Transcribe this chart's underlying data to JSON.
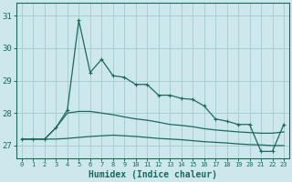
{
  "xlabel": "Humidex (Indice chaleur)",
  "background_color": "#cce8ec",
  "grid_color": "#aacdd4",
  "line_color": "#1a6b5a",
  "x": [
    0,
    1,
    2,
    3,
    4,
    5,
    6,
    7,
    8,
    9,
    10,
    11,
    12,
    13,
    14,
    15,
    16,
    17,
    18,
    19,
    20,
    21,
    22,
    23
  ],
  "y_upper": [
    27.2,
    27.2,
    27.2,
    27.55,
    28.1,
    30.85,
    29.25,
    29.65,
    29.15,
    29.1,
    28.88,
    28.88,
    28.55,
    28.55,
    28.45,
    28.42,
    28.22,
    27.82,
    27.75,
    27.65,
    27.65,
    26.82,
    26.82,
    27.65
  ],
  "y_middle": [
    27.2,
    27.2,
    27.2,
    27.55,
    28.0,
    28.05,
    28.05,
    28.0,
    27.95,
    27.88,
    27.82,
    27.78,
    27.72,
    27.65,
    27.62,
    27.58,
    27.52,
    27.48,
    27.45,
    27.42,
    27.4,
    27.38,
    27.38,
    27.42
  ],
  "y_lower": [
    27.2,
    27.2,
    27.2,
    27.2,
    27.22,
    27.25,
    27.28,
    27.3,
    27.32,
    27.3,
    27.28,
    27.25,
    27.22,
    27.2,
    27.18,
    27.15,
    27.12,
    27.1,
    27.08,
    27.05,
    27.03,
    27.02,
    27.0,
    27.0
  ],
  "ylim": [
    26.6,
    31.4
  ],
  "xlim": [
    -0.5,
    23.5
  ],
  "yticks": [
    27,
    28,
    29,
    30,
    31
  ],
  "xtick_labels": [
    "0",
    "1",
    "2",
    "3",
    "4",
    "5",
    "6",
    "7",
    "8",
    "9",
    "10",
    "11",
    "12",
    "13",
    "14",
    "15",
    "16",
    "17",
    "18",
    "19",
    "20",
    "21",
    "22",
    "23"
  ]
}
